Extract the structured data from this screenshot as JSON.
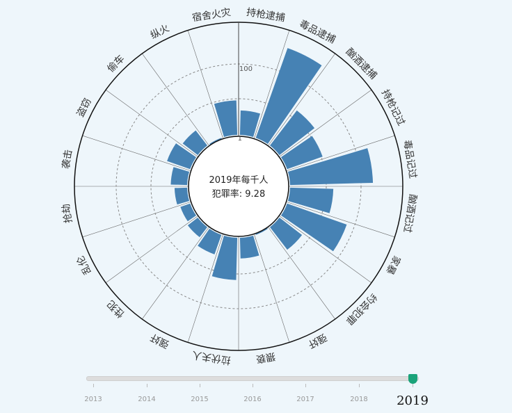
{
  "chart_data": {
    "type": "polar-bar",
    "center_text": {
      "line1": "2019年每千人",
      "line2": "犯罪率: 9.28"
    },
    "radial_scale": "log",
    "radial_ticks": [
      {
        "value": 1,
        "label": "1"
      },
      {
        "value": 100,
        "label": "100"
      }
    ],
    "categories": [
      "持枪逮捕",
      "毒品逮捕",
      "酗酒逮捕",
      "持枪记过",
      "毒品记过",
      "酗酒记过",
      "家暴",
      "约会犯罪",
      "强奸",
      "猥亵",
      "拉伏夫人",
      "强奸",
      "性犯",
      "乱伦",
      "抢劫",
      "袭击",
      "盗窃",
      "偷车",
      "纵火",
      "宿舍火灾"
    ],
    "values": [
      4.6,
      500,
      17,
      11,
      220,
      16,
      60,
      6,
      0.7,
      3.6,
      15,
      3.6,
      2.1,
      1.8,
      2.1,
      2.7,
      4.6,
      3.2,
      0.3,
      9
    ],
    "timeline": {
      "years": [
        "2013",
        "2014",
        "2015",
        "2016",
        "2017",
        "2018",
        "2019"
      ],
      "selected": "2019"
    },
    "colors": {
      "bar": "#4682b4",
      "axis": "#222222",
      "grid": "#888888"
    }
  }
}
